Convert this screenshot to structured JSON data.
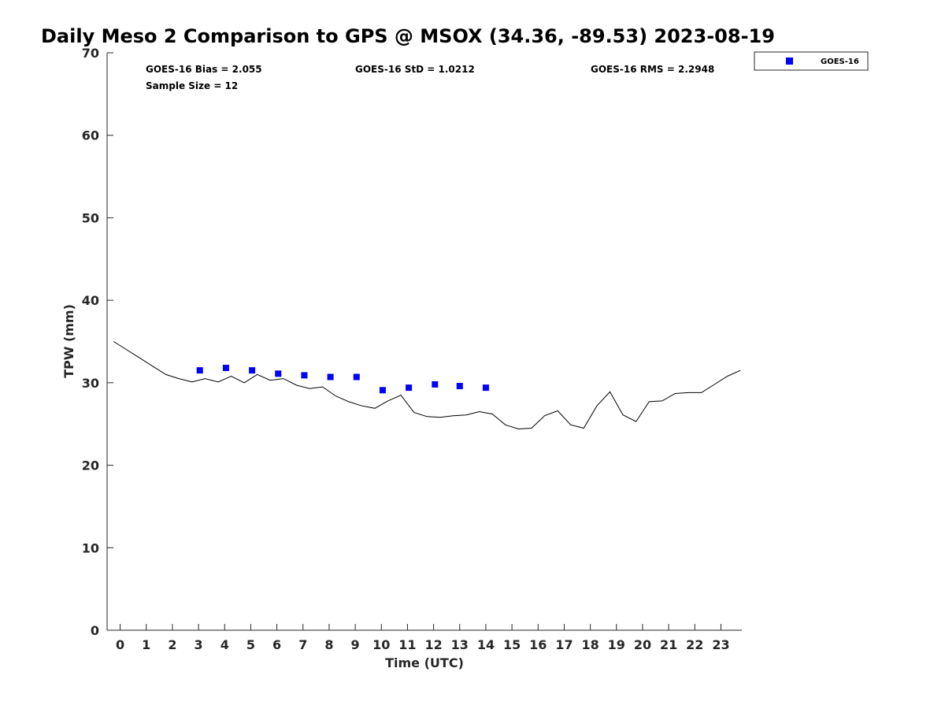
{
  "chart_data": {
    "type": "scatter",
    "title": "Daily Meso 2 Comparison to GPS @ MSOX (34.36, -89.53) 2023-08-19",
    "xlabel": "Time (UTC)",
    "ylabel": "TPW (mm)",
    "xlim": [
      -0.5,
      23.8
    ],
    "ylim": [
      0,
      70
    ],
    "x_ticks": [
      0,
      1,
      2,
      3,
      4,
      5,
      6,
      7,
      8,
      9,
      10,
      11,
      12,
      13,
      14,
      15,
      16,
      17,
      18,
      19,
      20,
      21,
      22,
      23
    ],
    "y_ticks": [
      0,
      10,
      20,
      30,
      40,
      50,
      60,
      70
    ],
    "grid": false,
    "legend_position": "top-right, outside plot",
    "stats": {
      "bias": "GOES-16 Bias = 2.055",
      "std": "GOES-16 StD = 1.0212",
      "rms": "GOES-16 RMS = 2.2948",
      "sample": "Sample Size = 12"
    },
    "series": [
      {
        "name": "GOES-16",
        "kind": "scatter",
        "marker": "square",
        "color": "#0000ff",
        "x": [
          3.05,
          4.05,
          5.05,
          6.05,
          7.05,
          8.05,
          9.05,
          10.05,
          11.05,
          12.05,
          13.0,
          14.0
        ],
        "y": [
          31.5,
          31.8,
          31.5,
          31.1,
          30.9,
          30.7,
          30.7,
          29.1,
          29.4,
          29.8,
          29.6,
          29.4
        ]
      },
      {
        "kind": "line",
        "color": "#000000",
        "x": [
          -0.25,
          0.25,
          0.75,
          1.25,
          1.75,
          2.25,
          2.75,
          3.25,
          3.75,
          4.25,
          4.75,
          5.25,
          5.75,
          6.25,
          6.75,
          7.25,
          7.75,
          8.25,
          8.75,
          9.25,
          9.75,
          10.25,
          10.75,
          11.25,
          11.75,
          12.25,
          12.75,
          13.25,
          13.75,
          14.25,
          14.75,
          15.25,
          15.75,
          16.25,
          16.75,
          17.25,
          17.75,
          18.25,
          18.75,
          19.25,
          19.75,
          20.25,
          20.75,
          21.25,
          21.75,
          22.25,
          22.75,
          23.25,
          23.75
        ],
        "y": [
          35.0,
          34.0,
          33.0,
          32.0,
          31.0,
          30.5,
          30.1,
          30.5,
          30.1,
          30.8,
          30.0,
          31.0,
          30.3,
          30.5,
          29.7,
          29.3,
          29.5,
          28.4,
          27.7,
          27.2,
          26.9,
          27.8,
          28.5,
          26.4,
          25.9,
          25.8,
          26.0,
          26.1,
          26.5,
          26.2,
          24.9,
          24.4,
          24.5,
          26.0,
          26.6,
          24.9,
          24.5,
          27.2,
          28.9,
          26.1,
          25.3,
          27.7,
          27.8,
          28.7,
          28.8,
          28.8,
          29.8,
          30.8,
          31.5
        ]
      }
    ]
  }
}
